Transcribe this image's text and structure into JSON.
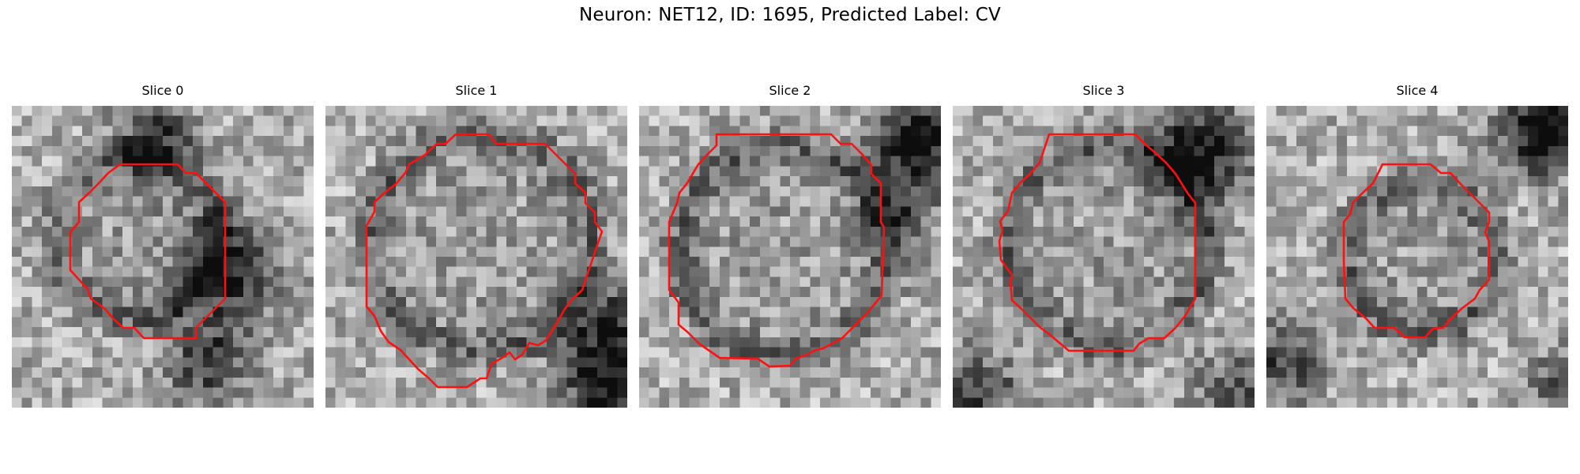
{
  "figure": {
    "title": "Neuron: NET12, ID: 1695, Predicted Label: CV",
    "colormap": "gray",
    "contour_color": "#ff0000"
  },
  "panels": [
    {
      "title": "Slice 0"
    },
    {
      "title": "Slice 1"
    },
    {
      "title": "Slice 2"
    },
    {
      "title": "Slice 3"
    },
    {
      "title": "Slice 4"
    }
  ]
}
